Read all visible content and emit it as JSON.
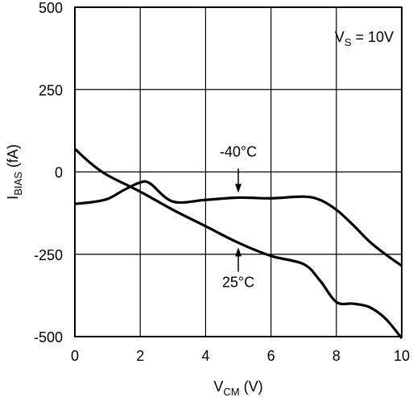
{
  "chart_data": {
    "type": "line",
    "xlabel": {
      "main": "V",
      "sub": "CM",
      "rest": " (V)"
    },
    "ylabel": {
      "main": "I",
      "sub": "BIAS",
      "rest": " (fA)"
    },
    "xlim": [
      0,
      10
    ],
    "ylim": [
      -500,
      500
    ],
    "xticks": [
      0,
      2,
      4,
      6,
      8,
      10
    ],
    "yticks": [
      500,
      250,
      0,
      -250,
      -500
    ],
    "xtick_labels": [
      "0",
      "2",
      "4",
      "6",
      "8",
      "10"
    ],
    "ytick_labels": [
      "500",
      "250",
      "0",
      "-250",
      "-500"
    ],
    "grid": true,
    "annotation": {
      "main": "V",
      "sub": "S",
      "rest": " = 10V"
    },
    "series": [
      {
        "name": "25°C",
        "x": [
          0,
          0.5,
          1.0,
          2.0,
          3.0,
          4.0,
          5.0,
          6.0,
          7.0,
          7.5,
          8.0,
          8.5,
          9.0,
          9.5,
          10.0
        ],
        "y": [
          70,
          25,
          -10,
          -60,
          -115,
          -165,
          -215,
          -255,
          -280,
          -330,
          -395,
          -400,
          -410,
          -445,
          -505
        ]
      },
      {
        "name": "-40°C",
        "x": [
          0,
          0.5,
          1.0,
          1.5,
          2.0,
          2.3,
          3.0,
          4.0,
          5.0,
          6.0,
          7.0,
          7.5,
          8.0,
          8.5,
          9.0,
          9.5,
          10.0
        ],
        "y": [
          -97,
          -92,
          -82,
          -55,
          -32,
          -35,
          -90,
          -85,
          -78,
          -80,
          -75,
          -85,
          -115,
          -160,
          -210,
          -250,
          -285
        ]
      }
    ],
    "labels": [
      {
        "text": "-40°C",
        "series": "-40°C",
        "x": 5.0,
        "y": -78
      },
      {
        "text": "25°C",
        "series": "25°C",
        "x": 5.0,
        "y": -215
      }
    ]
  }
}
